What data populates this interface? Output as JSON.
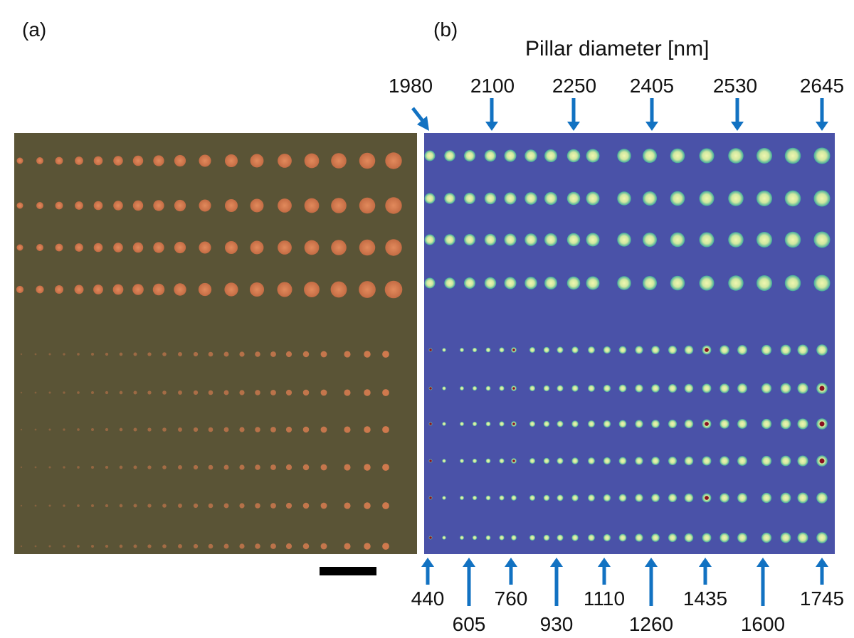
{
  "panels": {
    "a_label": "(a)",
    "b_label": "(b)"
  },
  "axis_title": "Pillar diameter [nm]",
  "top_labels": [
    "1980",
    "2100",
    "2250",
    "2405",
    "2530",
    "2645"
  ],
  "bottom_labels": [
    "440",
    "605",
    "760",
    "930",
    "1110",
    "1260",
    "1435",
    "1600",
    "1745"
  ],
  "colors": {
    "arrow": "#1272c2",
    "optical_bg": "#5a5436",
    "optical_dot": "#d07a4e",
    "map_bg": "#4a52a8",
    "map_dot_outer": "#4fb8a4",
    "map_dot_inner": "#e8f0a8",
    "hot_spot": "#8a1020",
    "scale_bar": "#000000"
  }
}
